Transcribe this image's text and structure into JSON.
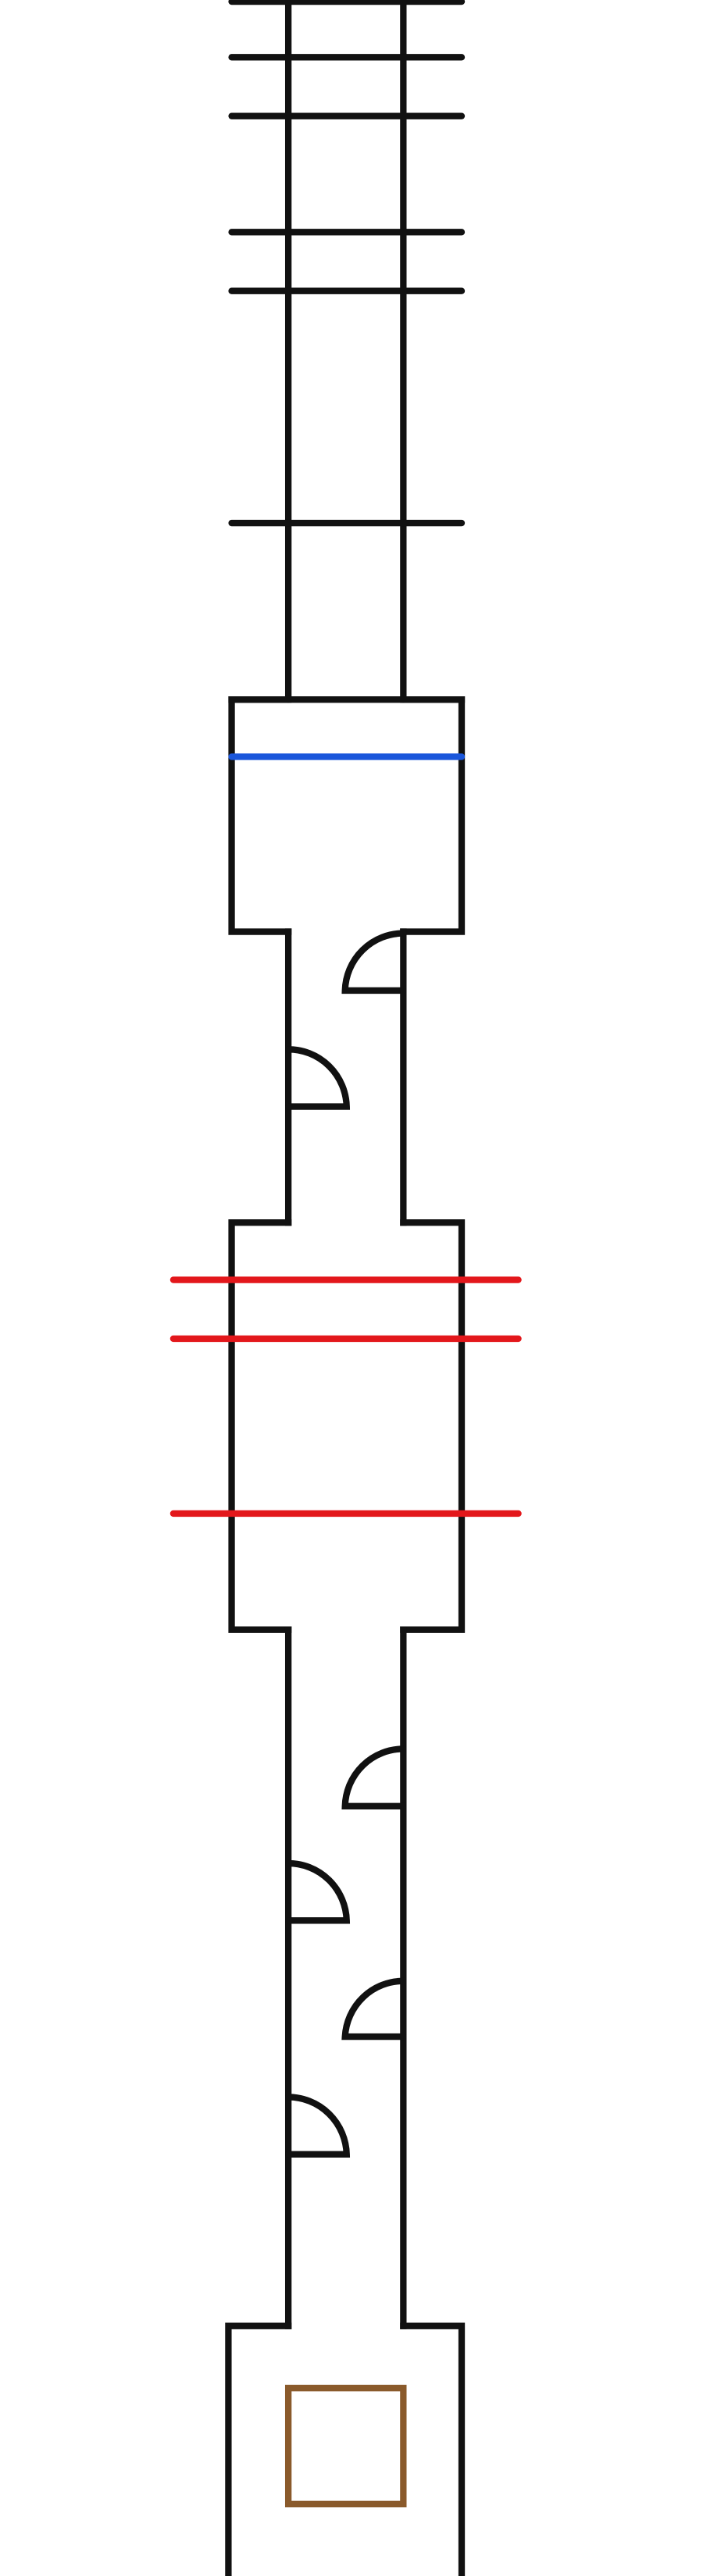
{
  "colors": {
    "background": "#ffffff",
    "wall": "#111111",
    "blue_line": "#1a56db",
    "red_line": "#e3171b",
    "box": "#8a5a2b"
  },
  "icons": {
    "rung": "horizontal-rung",
    "door": "door-swing-arc",
    "blue": "blue-line",
    "red": "red-line",
    "box": "brown-square"
  }
}
